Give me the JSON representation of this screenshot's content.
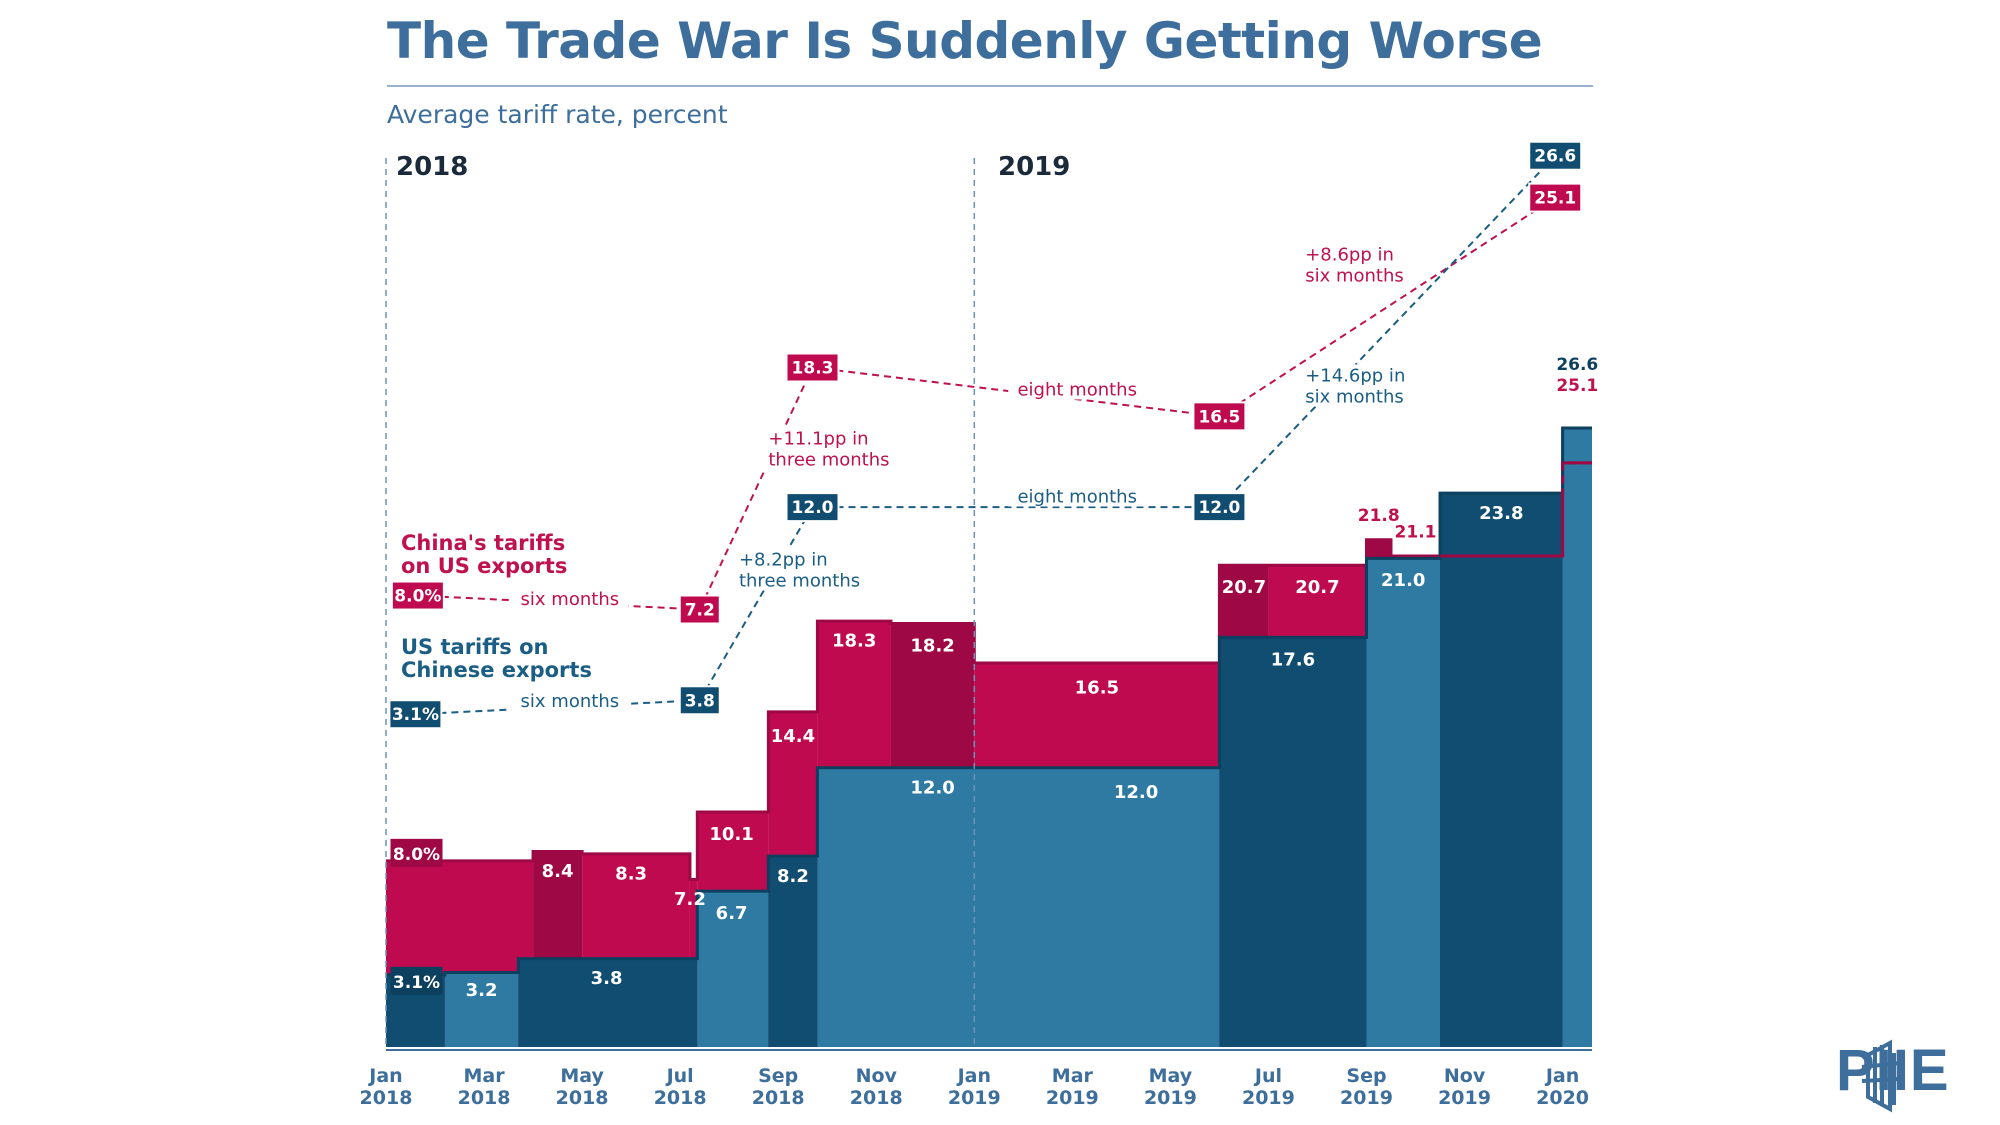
{
  "header": {
    "title": "The Trade War Is Suddenly Getting Worse",
    "subtitle": "Average tariff rate, percent",
    "year_2018": "2018",
    "year_2019": "2019"
  },
  "logo": {
    "text": "PIIE"
  },
  "colors": {
    "china_fill": "#bf0a4f",
    "china_dark": "#9e0844",
    "us_fill": "#1d6188",
    "us_dark": "#114d70",
    "us_light": "#2e7aa3",
    "china_text": "#c0114f",
    "us_text": "#1a5d85",
    "axis_text": "#3d6e9c"
  },
  "chart_data": {
    "type": "step-area",
    "title": "The Trade War Is Suddenly Getting Worse",
    "ylabel": "Average tariff rate, percent",
    "ylim": [
      0,
      26.6
    ],
    "x_ticks": [
      {
        "month": "Jan",
        "year": "2018"
      },
      {
        "month": "Mar",
        "year": "2018"
      },
      {
        "month": "May",
        "year": "2018"
      },
      {
        "month": "Jul",
        "year": "2018"
      },
      {
        "month": "Sep",
        "year": "2018"
      },
      {
        "month": "Nov",
        "year": "2018"
      },
      {
        "month": "Jan",
        "year": "2019"
      },
      {
        "month": "Mar",
        "year": "2019"
      },
      {
        "month": "May",
        "year": "2019"
      },
      {
        "month": "Jul",
        "year": "2019"
      },
      {
        "month": "Sep",
        "year": "2019"
      },
      {
        "month": "Nov",
        "year": "2019"
      },
      {
        "month": "Jan",
        "year": "2020"
      }
    ],
    "series": [
      {
        "name": "China's tariffs on US exports",
        "legend": [
          "China's tariffs",
          "on US exports"
        ],
        "steps": [
          {
            "start": 0.0,
            "end": 3.0,
            "value": 8.0,
            "label": "8.0%"
          },
          {
            "start": 3.0,
            "end": 4.0,
            "value": 8.4,
            "label": "8.4"
          },
          {
            "start": 4.0,
            "end": 6.2,
            "value": 8.3,
            "label": "8.3"
          },
          {
            "start": 6.2,
            "end": 6.35,
            "value": 7.2,
            "label": "7.2"
          },
          {
            "start": 6.35,
            "end": 7.8,
            "value": 10.1,
            "label": "10.1"
          },
          {
            "start": 7.8,
            "end": 8.8,
            "value": 14.4,
            "label": "14.4"
          },
          {
            "start": 8.8,
            "end": 10.3,
            "value": 18.3,
            "label": "18.3"
          },
          {
            "start": 10.3,
            "end": 12.0,
            "value": 18.2,
            "label": "18.2"
          },
          {
            "start": 12.0,
            "end": 17.0,
            "value": 16.5,
            "label": "16.5"
          },
          {
            "start": 17.0,
            "end": 18.0,
            "value": 20.7,
            "label": "20.7"
          },
          {
            "start": 18.0,
            "end": 20.0,
            "value": 20.7,
            "label": "20.7"
          },
          {
            "start": 20.0,
            "end": 20.5,
            "value": 21.8,
            "label": "21.8"
          },
          {
            "start": 20.5,
            "end": 21.5,
            "value": 21.1,
            "label": "21.1"
          },
          {
            "start": 21.5,
            "end": 24.0,
            "value": 21.1,
            "label": ""
          },
          {
            "start": 24.0,
            "end": 24.6,
            "value": 25.1,
            "label": "25.1"
          }
        ]
      },
      {
        "name": "US tariffs on Chinese exports",
        "legend": [
          "US tariffs on",
          "Chinese exports"
        ],
        "steps": [
          {
            "start": 0.0,
            "end": 1.2,
            "value": 3.1,
            "label": "3.1%"
          },
          {
            "start": 1.2,
            "end": 2.7,
            "value": 3.2,
            "label": "3.2"
          },
          {
            "start": 2.7,
            "end": 6.35,
            "value": 3.8,
            "label": "3.8"
          },
          {
            "start": 6.35,
            "end": 7.8,
            "value": 6.7,
            "label": "6.7"
          },
          {
            "start": 7.8,
            "end": 8.8,
            "value": 8.2,
            "label": "8.2"
          },
          {
            "start": 8.8,
            "end": 17.0,
            "value": 12.0,
            "label": "12.0"
          },
          {
            "start": 17.0,
            "end": 20.0,
            "value": 17.6,
            "label": "17.6"
          },
          {
            "start": 20.0,
            "end": 21.5,
            "value": 21.0,
            "label": "21.0"
          },
          {
            "start": 21.5,
            "end": 24.0,
            "value": 23.8,
            "label": "23.8"
          },
          {
            "start": 24.0,
            "end": 24.6,
            "value": 26.6,
            "label": "26.6"
          }
        ]
      }
    ],
    "bar_labels": [
      {
        "text": "8.0%",
        "series": "china",
        "x": 0.5,
        "y": 8.0,
        "boxed": true
      },
      {
        "text": "8.4",
        "series": "china",
        "x": 3.5,
        "y": 7.3
      },
      {
        "text": "8.3",
        "series": "china",
        "x": 5.0,
        "y": 7.2
      },
      {
        "text": "7.2",
        "series": "china",
        "x": 6.2,
        "y": 6.1
      },
      {
        "text": "10.1",
        "series": "china",
        "x": 7.05,
        "y": 8.9
      },
      {
        "text": "14.4",
        "series": "china",
        "x": 8.3,
        "y": 13.1
      },
      {
        "text": "18.3",
        "series": "china",
        "x": 9.55,
        "y": 17.2
      },
      {
        "text": "18.2",
        "series": "china",
        "x": 11.15,
        "y": 17.0
      },
      {
        "text": "16.5",
        "series": "china",
        "x": 14.5,
        "y": 15.2
      },
      {
        "text": "20.7",
        "series": "china",
        "x": 17.5,
        "y": 19.5
      },
      {
        "text": "20.7",
        "series": "china",
        "x": 19.0,
        "y": 19.5
      },
      {
        "text": "21.8",
        "series": "china",
        "x": 20.25,
        "y": 22.6,
        "outside": true
      },
      {
        "text": "21.1",
        "series": "china",
        "x": 21.0,
        "y": 21.9,
        "outside": true
      },
      {
        "text": "3.1%",
        "series": "us",
        "x": 0.5,
        "y": 2.5,
        "boxed": true
      },
      {
        "text": "3.2",
        "series": "us",
        "x": 1.95,
        "y": 2.2
      },
      {
        "text": "3.8",
        "series": "us",
        "x": 4.5,
        "y": 2.7
      },
      {
        "text": "6.7",
        "series": "us",
        "x": 7.05,
        "y": 5.5
      },
      {
        "text": "8.2",
        "series": "us",
        "x": 8.3,
        "y": 7.1
      },
      {
        "text": "12.0",
        "series": "us",
        "x": 11.15,
        "y": 10.9
      },
      {
        "text": "12.0",
        "series": "us",
        "x": 15.3,
        "y": 10.7
      },
      {
        "text": "17.6",
        "series": "us",
        "x": 18.5,
        "y": 16.4
      },
      {
        "text": "21.0",
        "series": "us",
        "x": 20.75,
        "y": 19.8
      },
      {
        "text": "23.8",
        "series": "us",
        "x": 22.75,
        "y": 22.7
      },
      {
        "text": "26.6",
        "series": "us",
        "x": 24.3,
        "y": 29.1,
        "outside": true
      },
      {
        "text": "25.1",
        "series": "china",
        "x": 24.3,
        "y": 28.2,
        "outside": true
      }
    ],
    "annotations": {
      "china_boxes": [
        {
          "text": "8.0%",
          "x": 0.65,
          "y": 19.4
        },
        {
          "text": "7.2",
          "x": 6.4,
          "y": 18.8
        },
        {
          "text": "18.3",
          "x": 8.7,
          "y": 29.2
        },
        {
          "text": "16.5",
          "x": 17.0,
          "y": 27.1
        },
        {
          "text": "25.1",
          "x": 23.85,
          "y": 36.5
        }
      ],
      "us_boxes": [
        {
          "text": "3.1%",
          "x": 0.6,
          "y": 14.3
        },
        {
          "text": "3.8",
          "x": 6.4,
          "y": 14.9
        },
        {
          "text": "12.0",
          "x": 8.7,
          "y": 23.2
        },
        {
          "text": "12.0",
          "x": 17.0,
          "y": 23.2
        },
        {
          "text": "26.6",
          "x": 23.85,
          "y": 38.3
        }
      ],
      "china_labels": [
        {
          "lines": [
            "six months"
          ],
          "x": 3.75,
          "y": 19.0
        },
        {
          "lines": [
            "+11.1pp in",
            "three months"
          ],
          "x": 7.8,
          "y": 25.9,
          "anchor": "start"
        },
        {
          "lines": [
            "eight months"
          ],
          "x": 14.1,
          "y": 28.0
        },
        {
          "lines": [
            "+8.6pp in",
            "six months"
          ],
          "x": 18.75,
          "y": 33.8,
          "anchor": "start"
        }
      ],
      "us_labels": [
        {
          "lines": [
            "six months"
          ],
          "x": 3.75,
          "y": 14.6
        },
        {
          "lines": [
            "+8.2pp in",
            "three months"
          ],
          "x": 7.2,
          "y": 20.7,
          "anchor": "start"
        },
        {
          "lines": [
            "eight months"
          ],
          "x": 14.1,
          "y": 23.4
        },
        {
          "lines": [
            "+14.6pp in",
            "six months"
          ],
          "x": 18.75,
          "y": 28.6,
          "anchor": "start"
        }
      ],
      "china_connectors": [
        [
          [
            0.65,
            19.4
          ],
          [
            6.4,
            18.8
          ]
        ],
        [
          [
            6.4,
            18.8
          ],
          [
            8.7,
            29.2
          ]
        ],
        [
          [
            8.7,
            29.2
          ],
          [
            17.0,
            27.1
          ]
        ],
        [
          [
            17.0,
            27.1
          ],
          [
            23.85,
            36.5
          ]
        ]
      ],
      "us_connectors": [
        [
          [
            0.6,
            14.3
          ],
          [
            6.4,
            14.9
          ]
        ],
        [
          [
            6.4,
            14.9
          ],
          [
            8.7,
            23.2
          ]
        ],
        [
          [
            8.7,
            23.2
          ],
          [
            17.0,
            23.2
          ]
        ],
        [
          [
            17.0,
            23.2
          ],
          [
            23.85,
            38.3
          ]
        ]
      ]
    }
  }
}
